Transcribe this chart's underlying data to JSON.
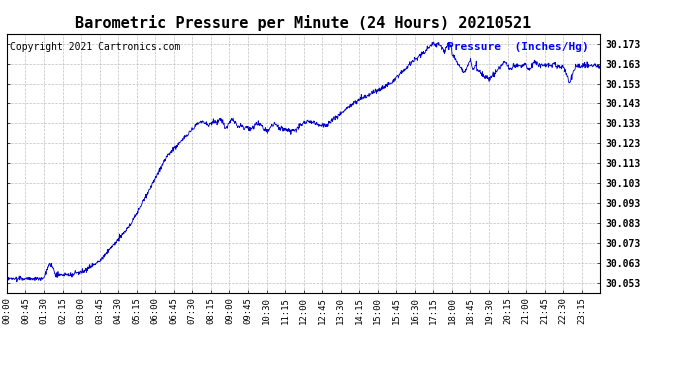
{
  "title": "Barometric Pressure per Minute (24 Hours) 20210521",
  "copyright": "Copyright 2021 Cartronics.com",
  "legend_label": "Pressure  (Inches/Hg)",
  "line_color": "#0000cc",
  "background_color": "#ffffff",
  "grid_color": "#b0b0b0",
  "ylim": [
    30.048,
    30.178
  ],
  "yticks": [
    30.053,
    30.063,
    30.073,
    30.083,
    30.093,
    30.103,
    30.113,
    30.123,
    30.133,
    30.143,
    30.153,
    30.163,
    30.173
  ],
  "xtick_labels": [
    "00:00",
    "00:45",
    "01:30",
    "02:15",
    "03:00",
    "03:45",
    "04:30",
    "05:15",
    "06:00",
    "06:45",
    "07:30",
    "08:15",
    "09:00",
    "09:45",
    "10:30",
    "11:15",
    "12:00",
    "12:45",
    "13:30",
    "14:15",
    "15:00",
    "15:45",
    "16:30",
    "17:15",
    "18:00",
    "18:45",
    "19:30",
    "20:15",
    "21:00",
    "21:45",
    "22:30",
    "23:15"
  ],
  "title_fontsize": 11,
  "copyright_fontsize": 7,
  "legend_fontsize": 8,
  "ytick_fontsize": 7,
  "xtick_fontsize": 6.5
}
